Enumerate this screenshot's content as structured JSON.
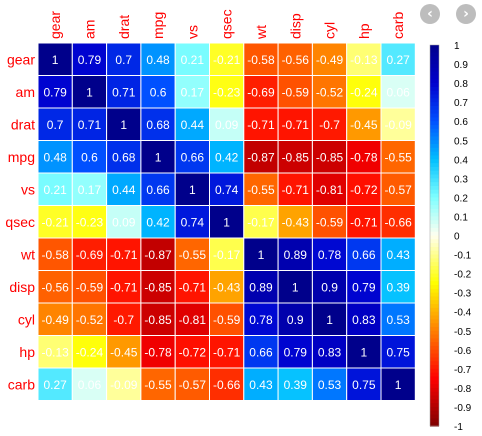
{
  "nav": {
    "prev_icon": "chevron-left-icon",
    "next_icon": "chevron-right-icon",
    "prev_glyph": "‹",
    "next_glyph": "›"
  },
  "chart_data": {
    "type": "heatmap",
    "variables": [
      "gear",
      "am",
      "drat",
      "mpg",
      "vs",
      "qsec",
      "wt",
      "disp",
      "cyl",
      "hp",
      "carb"
    ],
    "values": [
      [
        "1",
        "0.79",
        "0.7",
        "0.48",
        "0.21",
        "-0.21",
        "-0.58",
        "-0.56",
        "-0.49",
        "-0.13",
        "0.27"
      ],
      [
        "0.79",
        "1",
        "0.71",
        "0.6",
        "0.17",
        "-0.23",
        "-0.69",
        "-0.59",
        "-0.52",
        "-0.24",
        "0.06"
      ],
      [
        "0.7",
        "0.71",
        "1",
        "0.68",
        "0.44",
        "0.09",
        "-0.71",
        "-0.71",
        "-0.7",
        "-0.45",
        "-0.09"
      ],
      [
        "0.48",
        "0.6",
        "0.68",
        "1",
        "0.66",
        "0.42",
        "-0.87",
        "-0.85",
        "-0.85",
        "-0.78",
        "-0.55"
      ],
      [
        "0.21",
        "0.17",
        "0.44",
        "0.66",
        "1",
        "0.74",
        "-0.55",
        "-0.71",
        "-0.81",
        "-0.72",
        "-0.57"
      ],
      [
        "-0.21",
        "-0.23",
        "0.09",
        "0.42",
        "0.74",
        "1",
        "-0.17",
        "-0.43",
        "-0.59",
        "-0.71",
        "-0.66"
      ],
      [
        "-0.58",
        "-0.69",
        "-0.71",
        "-0.87",
        "-0.55",
        "-0.17",
        "1",
        "0.89",
        "0.78",
        "0.66",
        "0.43"
      ],
      [
        "-0.56",
        "-0.59",
        "-0.71",
        "-0.85",
        "-0.71",
        "-0.43",
        "0.89",
        "1",
        "0.9",
        "0.79",
        "0.39"
      ],
      [
        "-0.49",
        "-0.52",
        "-0.7",
        "-0.85",
        "-0.81",
        "-0.59",
        "0.78",
        "0.9",
        "1",
        "0.83",
        "0.53"
      ],
      [
        "-0.13",
        "-0.24",
        "-0.45",
        "-0.78",
        "-0.72",
        "-0.71",
        "0.66",
        "0.79",
        "0.83",
        "1",
        "0.75"
      ],
      [
        "0.27",
        "0.06",
        "-0.09",
        "-0.55",
        "-0.57",
        "-0.66",
        "0.43",
        "0.39",
        "0.53",
        "0.75",
        "1"
      ]
    ],
    "color_range": [
      -1,
      1
    ],
    "colorbar_ticks": [
      "1",
      "0.9",
      "0.8",
      "0.7",
      "0.6",
      "0.5",
      "0.4",
      "0.3",
      "0.2",
      "0.1",
      "0",
      "-0.1",
      "-0.2",
      "-0.3",
      "-0.4",
      "-0.5",
      "-0.6",
      "-0.7",
      "-0.8",
      "-0.9",
      "-1"
    ],
    "colors": {
      "label": "#ff0000",
      "cell_text": "#ffffff",
      "tick_text": "#000000",
      "grid": "#ffffff",
      "scale": [
        {
          "v": -1.0,
          "c": "#7f0000"
        },
        {
          "v": -0.75,
          "c": "#ff0000"
        },
        {
          "v": -0.5,
          "c": "#ff7f00"
        },
        {
          "v": -0.25,
          "c": "#ffff00"
        },
        {
          "v": 0.0,
          "c": "#fffff0"
        },
        {
          "v": 0.2,
          "c": "#7fffff"
        },
        {
          "v": 0.4,
          "c": "#00bfff"
        },
        {
          "v": 0.6,
          "c": "#0050ff"
        },
        {
          "v": 0.8,
          "c": "#0000cd"
        },
        {
          "v": 1.0,
          "c": "#00008b"
        }
      ]
    }
  }
}
